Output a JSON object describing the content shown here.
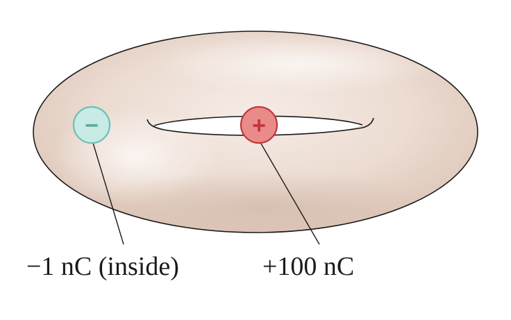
{
  "charges": {
    "negative": {
      "symbol": "−",
      "label": "−1 nC (inside)"
    },
    "positive": {
      "symbol": "+",
      "label": "+100 nC"
    }
  },
  "colors": {
    "torus_body": "#ecdcd2",
    "torus_shadow": "#d9c2b4",
    "torus_highlight": "#f9f2ee",
    "outline": "#1a1a1a",
    "negative_fill": "#c8ebe6",
    "negative_stroke": "#6bbfb5",
    "negative_sign": "#5aa99f",
    "positive_fill": "#e98b88",
    "positive_stroke": "#c0353e",
    "positive_sign": "#c0353e",
    "leader_line": "#1a1a1a"
  }
}
